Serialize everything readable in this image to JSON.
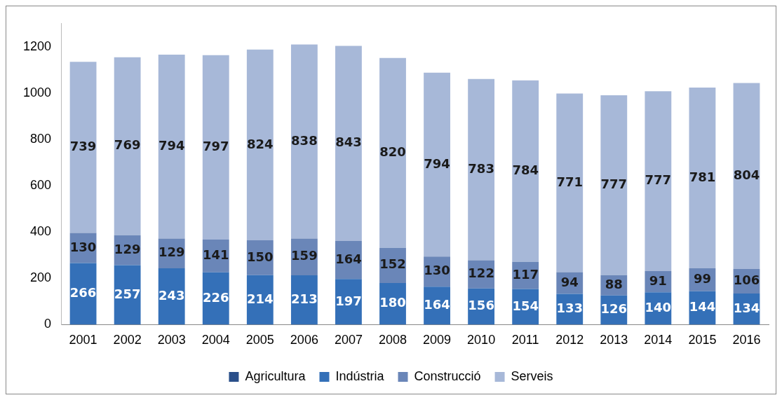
{
  "chart_data": {
    "type": "bar",
    "stacked": true,
    "categories": [
      "2001",
      "2002",
      "2003",
      "2004",
      "2005",
      "2006",
      "2007",
      "2008",
      "2009",
      "2010",
      "2011",
      "2012",
      "2013",
      "2014",
      "2015",
      "2016"
    ],
    "series": [
      {
        "name": "Agricultura",
        "color": "#2a4f8a",
        "values": [
          null,
          null,
          null,
          null,
          null,
          null,
          null,
          null,
          null,
          null,
          null,
          null,
          null,
          null,
          null,
          null
        ]
      },
      {
        "name": "Indústria",
        "color": "#3470b8",
        "values": [
          266,
          257,
          243,
          226,
          214,
          213,
          197,
          180,
          164,
          156,
          154,
          133,
          126,
          140,
          144,
          134
        ]
      },
      {
        "name": "Construcció",
        "color": "#6a86b8",
        "values": [
          130,
          129,
          129,
          141,
          150,
          159,
          164,
          152,
          130,
          122,
          117,
          94,
          88,
          91,
          99,
          106
        ]
      },
      {
        "name": "Serveis",
        "color": "#a7b8d8",
        "values": [
          739,
          769,
          794,
          797,
          824,
          838,
          843,
          820,
          794,
          783,
          784,
          771,
          777,
          777,
          781,
          804
        ]
      }
    ],
    "ylim": [
      0,
      1300
    ],
    "yticks": [
      0,
      200,
      400,
      600,
      800,
      1000,
      1200
    ],
    "grid": false,
    "legend": "bottom",
    "data_labels": true
  }
}
